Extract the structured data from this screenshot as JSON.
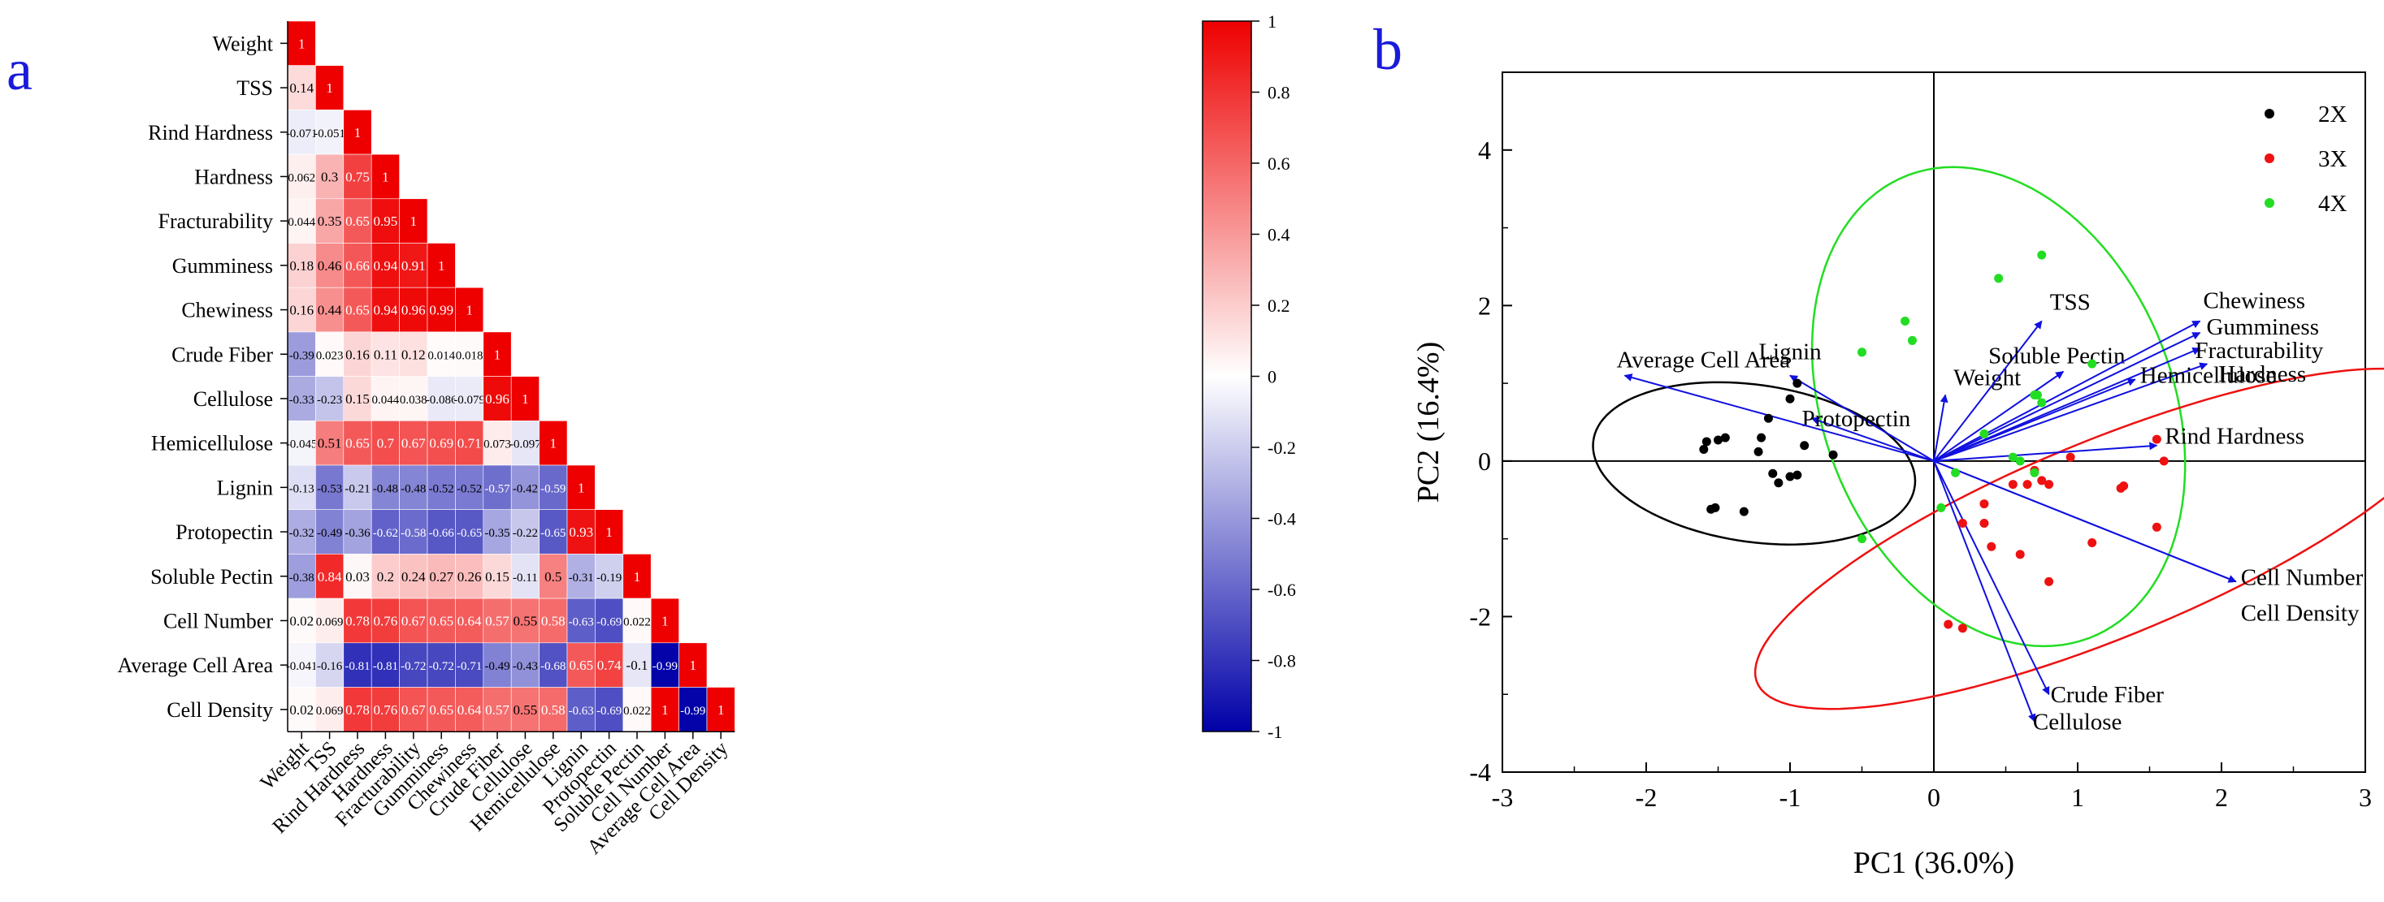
{
  "panel_labels": {
    "left": "a",
    "right": "b"
  },
  "colors": {
    "positive": "#ee0000",
    "negative": "#0000a8",
    "neutral": "#ffffff",
    "vector": "#1010e0",
    "group_2X": "#000000",
    "group_3X": "#ee1111",
    "group_4X": "#22dd22"
  },
  "chart_data": [
    {
      "type": "heatmap",
      "variables": [
        "Weight",
        "TSS",
        "Rind Hardness",
        "Hardness",
        "Fracturability",
        "Gumminess",
        "Chewiness",
        "Crude Fiber",
        "Cellulose",
        "Hemicellulose",
        "Lignin",
        "Protopectin",
        "Soluble Pectin",
        "Cell Number",
        "Average Cell Area",
        "Cell Density"
      ],
      "matrix_lower": [
        [
          "1"
        ],
        [
          "0.14",
          "1"
        ],
        [
          "-0.071",
          "-0.051",
          "1"
        ],
        [
          "0.062",
          "0.3",
          "0.75",
          "1"
        ],
        [
          "0.044",
          "0.35",
          "0.65",
          "0.95",
          "1"
        ],
        [
          "0.18",
          "0.46",
          "0.66",
          "0.94",
          "0.91",
          "1"
        ],
        [
          "0.16",
          "0.44",
          "0.65",
          "0.94",
          "0.96",
          "0.99",
          "1"
        ],
        [
          "-0.39",
          "0.023",
          "0.16",
          "0.11",
          "0.12",
          "0.014",
          "0.018",
          "1"
        ],
        [
          "-0.33",
          "-0.23",
          "0.15",
          "0.044",
          "0.038",
          "-0.086",
          "-0.079",
          "0.96",
          "1"
        ],
        [
          "-0.045",
          "0.51",
          "0.65",
          "0.7",
          "0.67",
          "0.69",
          "0.71",
          "0.073",
          "-0.097",
          "1"
        ],
        [
          "-0.13",
          "-0.53",
          "-0.21",
          "-0.48",
          "-0.48",
          "-0.52",
          "-0.52",
          "-0.57",
          "-0.42",
          "-0.59",
          "1"
        ],
        [
          "-0.32",
          "-0.49",
          "-0.36",
          "-0.62",
          "-0.58",
          "-0.66",
          "-0.65",
          "-0.35",
          "-0.22",
          "-0.65",
          "0.93",
          "1"
        ],
        [
          "-0.38",
          "0.84",
          "0.03",
          "0.2",
          "0.24",
          "0.27",
          "0.26",
          "0.15",
          "-0.11",
          "0.5",
          "-0.31",
          "-0.19",
          "1"
        ],
        [
          "0.02",
          "0.069",
          "0.78",
          "0.76",
          "0.67",
          "0.65",
          "0.64",
          "0.57",
          "0.55",
          "0.58",
          "-0.63",
          "-0.69",
          "0.022",
          "1"
        ],
        [
          "-0.041",
          "-0.16",
          "-0.81",
          "-0.81",
          "-0.72",
          "-0.72",
          "-0.71",
          "-0.49",
          "-0.43",
          "-0.68",
          "0.65",
          "0.74",
          "-0.1",
          "-0.99",
          "1"
        ],
        [
          "0.02",
          "0.069",
          "0.78",
          "0.76",
          "0.67",
          "0.65",
          "0.64",
          "0.57",
          "0.55",
          "0.58",
          "-0.63",
          "-0.69",
          "0.022",
          "1",
          "-0.99",
          "1"
        ]
      ],
      "colorbar": {
        "range": [
          -1,
          1
        ],
        "ticks": [
          "1",
          "0.8",
          "0.6",
          "0.4",
          "0.2",
          "0",
          "-0.2",
          "-0.4",
          "-0.6",
          "-0.8",
          "-1"
        ]
      }
    },
    {
      "type": "scatter",
      "xlabel": "PC1 (36.0%)",
      "ylabel": "PC2 (16.4%)",
      "xlim": [
        -3,
        3
      ],
      "ylim": [
        -4,
        5
      ],
      "xticks": [
        "-3",
        "-2",
        "-1",
        "0",
        "1",
        "2",
        "3"
      ],
      "yticks": [
        "-4",
        "-2",
        "0",
        "2",
        "4"
      ],
      "legend_position": "top-right",
      "series": [
        {
          "name": "2X",
          "color": "#000000",
          "points": [
            [
              -1.6,
              0.15
            ],
            [
              -1.58,
              0.25
            ],
            [
              -1.5,
              0.27
            ],
            [
              -1.45,
              0.3
            ],
            [
              -1.15,
              0.55
            ],
            [
              -1.2,
              0.3
            ],
            [
              -1.22,
              0.12
            ],
            [
              -1.0,
              0.8
            ],
            [
              -0.95,
              1.0
            ],
            [
              -0.9,
              0.2
            ],
            [
              -0.7,
              0.08
            ],
            [
              -1.55,
              -0.62
            ],
            [
              -1.52,
              -0.6
            ],
            [
              -1.32,
              -0.65
            ],
            [
              -1.0,
              -0.2
            ],
            [
              -0.95,
              -0.18
            ],
            [
              -1.12,
              -0.16
            ],
            [
              -1.08,
              -0.28
            ]
          ]
        },
        {
          "name": "3X",
          "color": "#ee1111",
          "points": [
            [
              0.2,
              -0.8
            ],
            [
              0.35,
              -0.8
            ],
            [
              0.35,
              -0.55
            ],
            [
              0.55,
              -0.3
            ],
            [
              0.65,
              -0.3
            ],
            [
              0.7,
              -0.12
            ],
            [
              0.75,
              -0.25
            ],
            [
              0.8,
              -0.3
            ],
            [
              0.95,
              0.05
            ],
            [
              1.1,
              -1.05
            ],
            [
              1.3,
              -0.35
            ],
            [
              1.32,
              -0.32
            ],
            [
              1.55,
              -0.85
            ],
            [
              1.6,
              0.0
            ],
            [
              1.55,
              0.28
            ],
            [
              0.4,
              -1.1
            ],
            [
              0.6,
              -1.2
            ],
            [
              0.8,
              -1.55
            ],
            [
              0.1,
              -2.1
            ],
            [
              0.2,
              -2.15
            ]
          ]
        },
        {
          "name": "4X",
          "color": "#22dd22",
          "points": [
            [
              -0.5,
              -1.0
            ],
            [
              -0.5,
              1.4
            ],
            [
              -0.2,
              1.8
            ],
            [
              -0.15,
              1.55
            ],
            [
              0.05,
              -0.6
            ],
            [
              0.15,
              -0.15
            ],
            [
              0.35,
              0.35
            ],
            [
              0.45,
              2.35
            ],
            [
              0.55,
              0.05
            ],
            [
              0.6,
              0.0
            ],
            [
              0.7,
              -0.15
            ],
            [
              0.7,
              0.85
            ],
            [
              0.72,
              0.85
            ],
            [
              0.75,
              2.65
            ],
            [
              0.75,
              0.75
            ],
            [
              1.1,
              1.25
            ]
          ]
        }
      ],
      "confidence_ellipses": [
        {
          "group": "2X",
          "color": "#000000",
          "center": [
            -1.25,
            -0.03
          ],
          "semi_axes": [
            0.95,
            1.2
          ],
          "angle_deg": 54
        },
        {
          "group": "4X",
          "color": "#22dd22",
          "center": [
            0.45,
            0.7
          ],
          "semi_axes": [
            1.25,
            3.1
          ],
          "angle_deg": 7
        },
        {
          "group": "3X",
          "color": "#ee1111",
          "center": [
            1.2,
            -1.0
          ],
          "semi_axes": [
            1.07,
            3.1
          ],
          "angle_deg": -49
        }
      ],
      "loadings": [
        {
          "label": "Weight",
          "x": 0.08,
          "y": 0.85
        },
        {
          "label": "TSS",
          "x": 0.75,
          "y": 1.8
        },
        {
          "label": "Soluble Pectin",
          "x": 0.9,
          "y": 1.15
        },
        {
          "label": "Chewiness",
          "x": 1.85,
          "y": 1.8
        },
        {
          "label": "Gumminess",
          "x": 1.85,
          "y": 1.65
        },
        {
          "label": "Fracturability",
          "x": 1.85,
          "y": 1.45
        },
        {
          "label": "Hardness",
          "x": 1.9,
          "y": 1.25
        },
        {
          "label": "Hemicellulose",
          "x": 1.4,
          "y": 1.05
        },
        {
          "label": "Rind Hardness",
          "x": 1.55,
          "y": 0.2
        },
        {
          "label": "Cell Number",
          "x": 2.1,
          "y": -1.55
        },
        {
          "label": "Cell Density",
          "x": 2.1,
          "y": -1.55
        },
        {
          "label": "Crude Fiber",
          "x": 0.8,
          "y": -3.0
        },
        {
          "label": "Cellulose",
          "x": 0.7,
          "y": -3.35
        },
        {
          "label": "Lignin",
          "x": -1.0,
          "y": 1.1
        },
        {
          "label": "Protopectin",
          "x": -0.85,
          "y": 0.55
        },
        {
          "label": "Average Cell Area",
          "x": -2.15,
          "y": 1.1
        }
      ]
    }
  ]
}
